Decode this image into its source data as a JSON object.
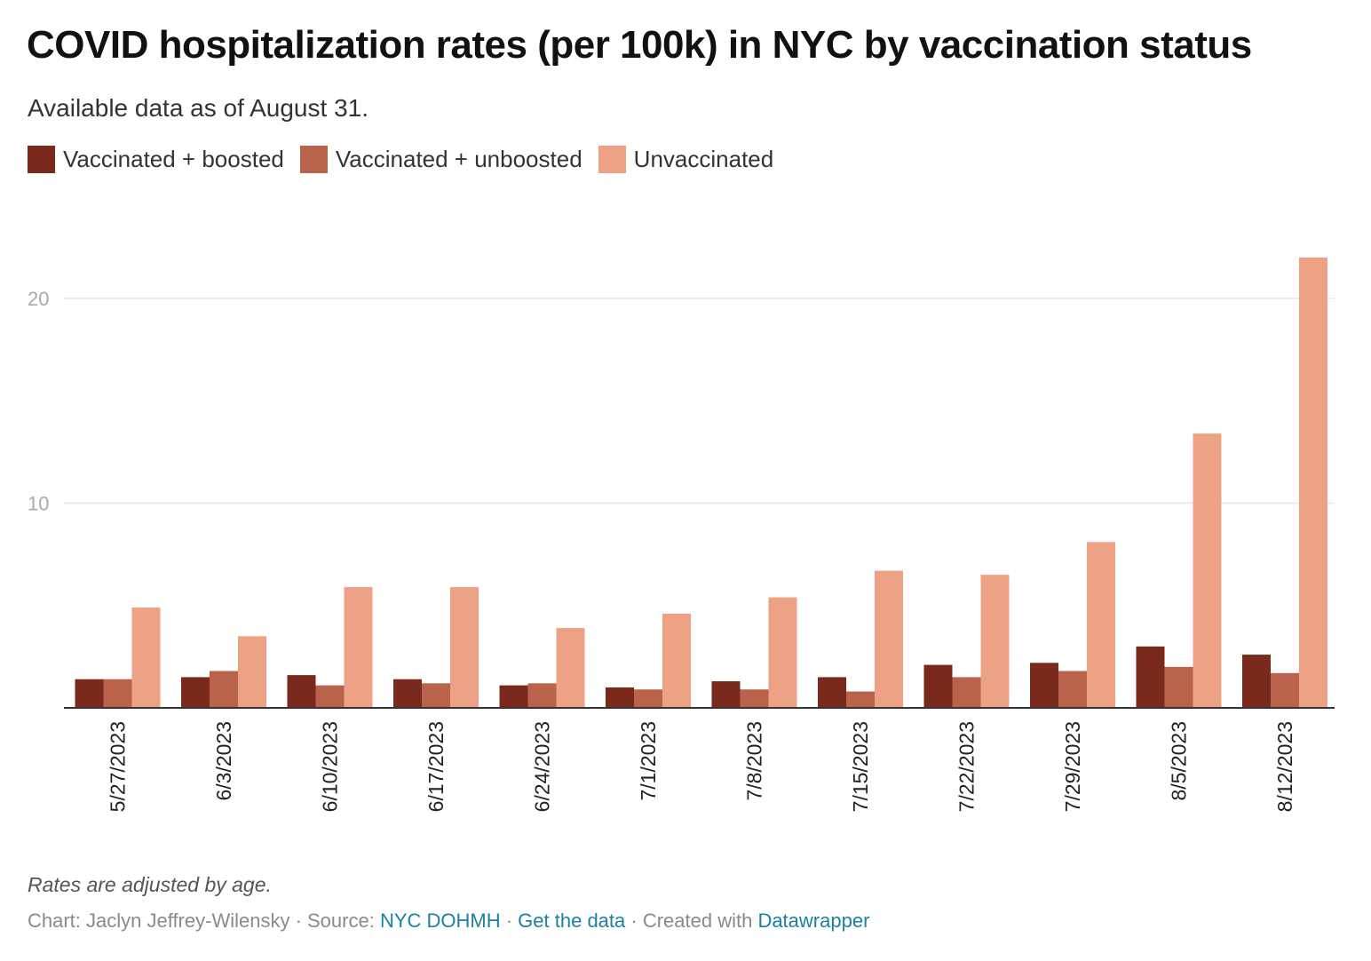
{
  "header": {
    "title": "COVID hospitalization rates (per 100k) in NYC by vaccination status",
    "subtitle": "Available data as of August 31."
  },
  "colors": {
    "vaccinated_boosted": "#7a2a1c",
    "vaccinated_unboosted": "#b9624c",
    "unvaccinated": "#eea285",
    "gridline": "#e6e6e6",
    "baseline": "#333333",
    "tick_label": "#aaaaaa"
  },
  "footer": {
    "notes": "Rates are adjusted by age.",
    "credit_prefix": "Chart: Jaclyn Jeffrey-Wilensky · Source: ",
    "source_link": "NYC DOHMH",
    "separator1": " · ",
    "data_link": "Get the data",
    "created_prefix": " · Created with ",
    "tool_link": "Datawrapper"
  },
  "chart_data": {
    "type": "bar",
    "categories": [
      "5/27/2023",
      "6/3/2023",
      "6/10/2023",
      "6/17/2023",
      "6/24/2023",
      "7/1/2023",
      "7/8/2023",
      "7/15/2023",
      "7/22/2023",
      "7/29/2023",
      "8/5/2023",
      "8/12/2023"
    ],
    "series": [
      {
        "name": "Vaccinated + boosted",
        "values": [
          1.4,
          1.5,
          1.6,
          1.4,
          1.1,
          1.0,
          1.3,
          1.5,
          2.1,
          2.2,
          3.0,
          2.6
        ]
      },
      {
        "name": "Vaccinated + unboosted",
        "values": [
          1.4,
          1.8,
          1.1,
          1.2,
          1.2,
          0.9,
          0.9,
          0.8,
          1.5,
          1.8,
          2.0,
          1.7
        ]
      },
      {
        "name": "Unvaccinated",
        "values": [
          4.9,
          3.5,
          5.9,
          5.9,
          3.9,
          4.6,
          5.4,
          6.7,
          6.5,
          8.1,
          13.4,
          22.0
        ]
      }
    ],
    "yticks": [
      10,
      20
    ],
    "ylim": [
      0,
      22
    ],
    "grid": true,
    "legend_position": "top-left"
  }
}
